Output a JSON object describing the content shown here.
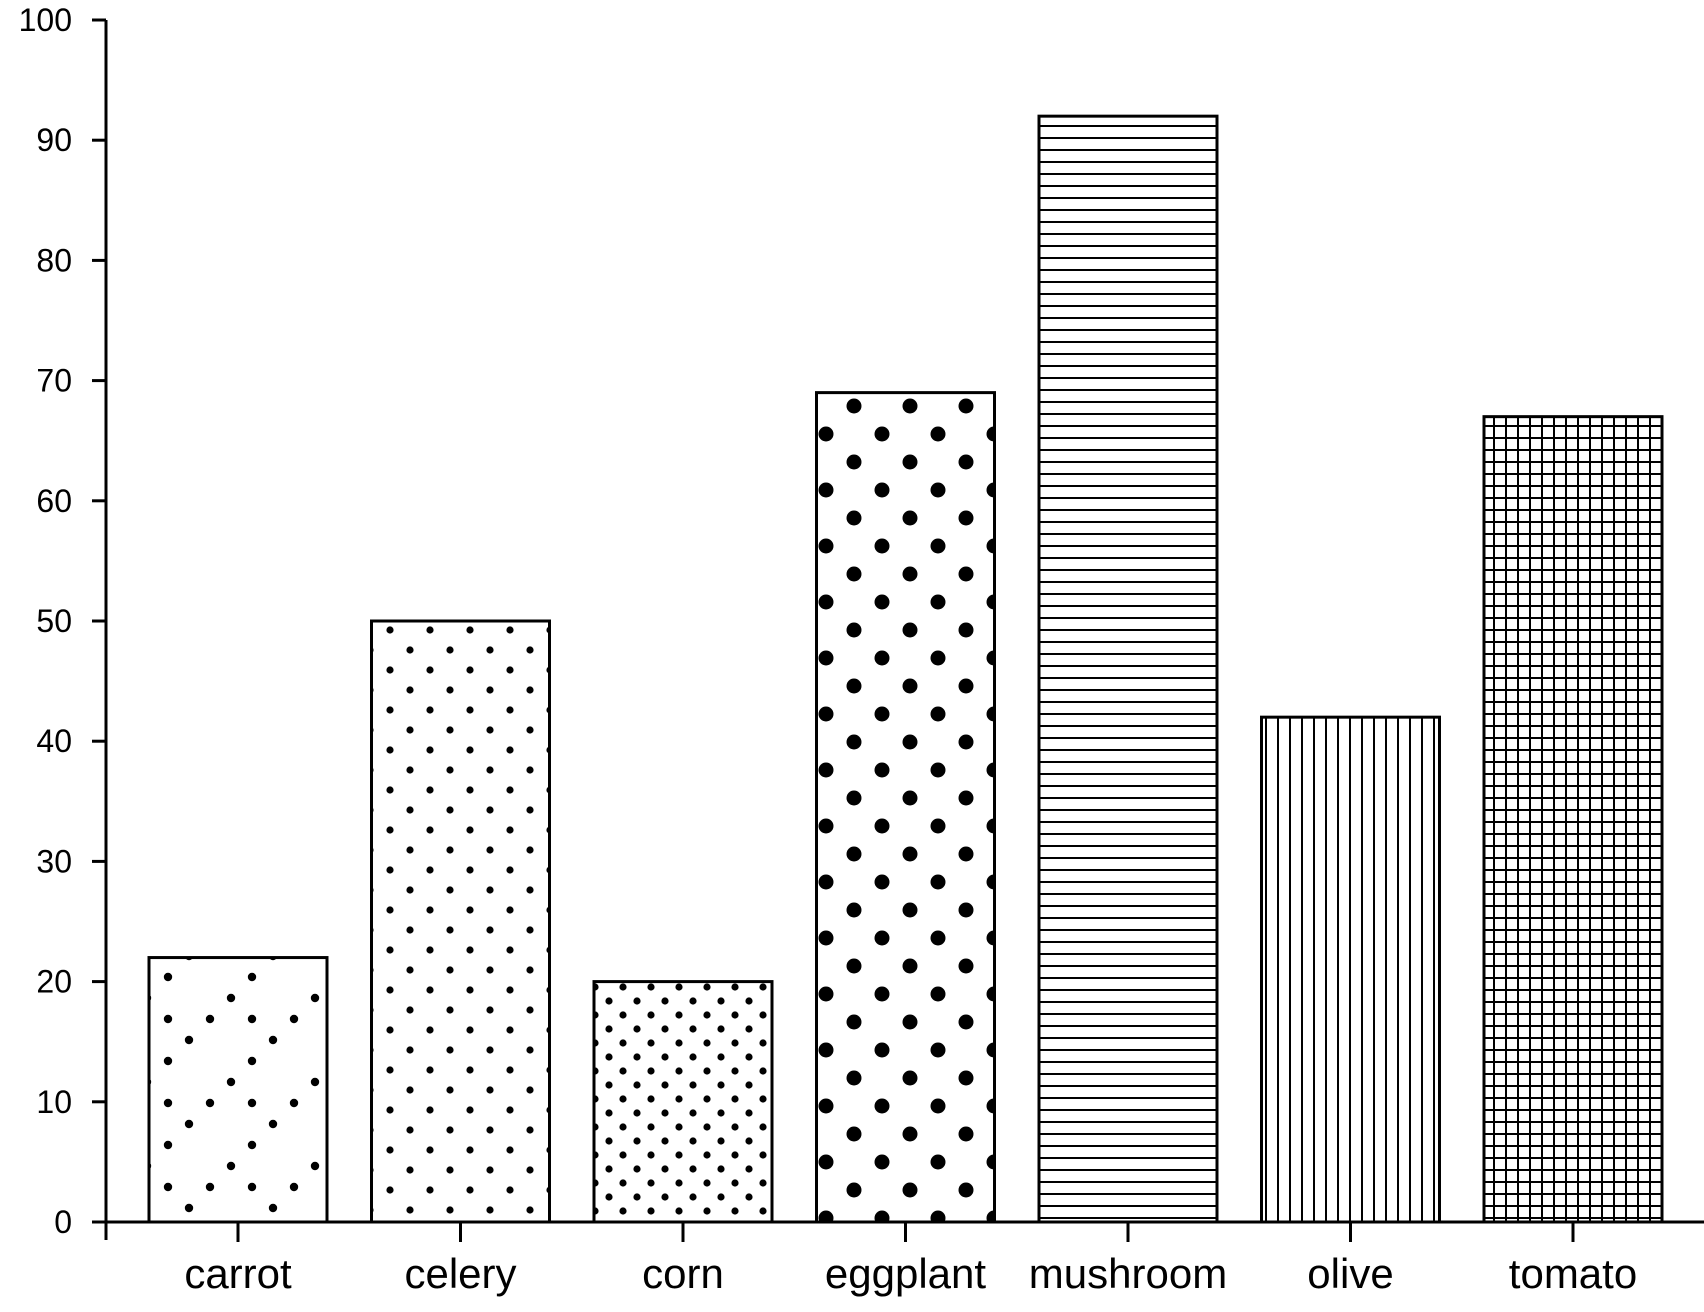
{
  "chart_data": {
    "type": "bar",
    "title": "",
    "xlabel": "",
    "ylabel": "",
    "ylim": [
      0,
      100
    ],
    "yticks": [
      0,
      10,
      20,
      30,
      40,
      50,
      60,
      70,
      80,
      90,
      100
    ],
    "grid": false,
    "legend": "none",
    "bar_fill_color": "#ffffff",
    "bar_edge_color": "#000000",
    "categories": [
      "carrot",
      "celery",
      "corn",
      "eggplant",
      "mushroom",
      "olive",
      "tomato"
    ],
    "values": [
      22,
      50,
      20,
      69,
      92,
      42,
      67
    ],
    "hatch_patterns": [
      "sparse-dots",
      "small-dots",
      "dense-dots",
      "large-dots",
      "horizontal-lines",
      "vertical-lines",
      "grid"
    ]
  }
}
